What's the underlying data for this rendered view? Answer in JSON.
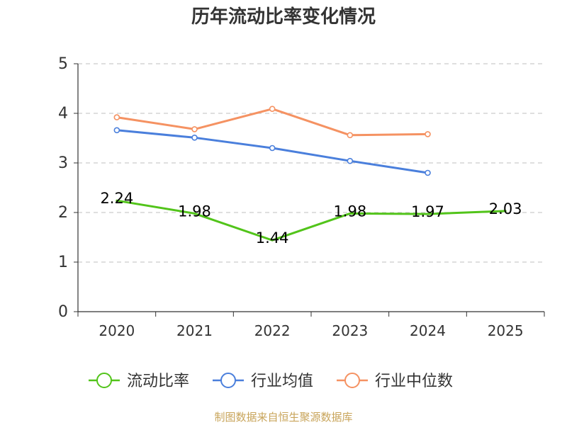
{
  "chart_data": {
    "type": "line",
    "title": "历年流动比率变化情况",
    "categories": [
      "2020",
      "2021",
      "2022",
      "2023",
      "2024",
      "2025"
    ],
    "ylim": [
      0,
      5
    ],
    "yticks": [
      0,
      1,
      2,
      3,
      4,
      5
    ],
    "grid": true,
    "legend_position": "bottom",
    "series": [
      {
        "name": "流动比率",
        "color": "#52c41a",
        "values": [
          2.24,
          1.98,
          1.44,
          1.98,
          1.97,
          2.03
        ],
        "labels": [
          "2.24",
          "1.98",
          "1.44",
          "1.98",
          "1.97",
          "2.03"
        ],
        "show_labels": true,
        "show_markers": false
      },
      {
        "name": "行业均值",
        "color": "#4a7fdc",
        "values": [
          3.66,
          3.51,
          3.3,
          3.04,
          2.8,
          null
        ],
        "show_labels": false,
        "show_markers": true
      },
      {
        "name": "行业中位数",
        "color": "#f59262",
        "values": [
          3.92,
          3.68,
          4.09,
          3.56,
          3.58,
          null
        ],
        "show_labels": false,
        "show_markers": true
      }
    ]
  },
  "footer": {
    "source": "制图数据来自恒生聚源数据库"
  }
}
